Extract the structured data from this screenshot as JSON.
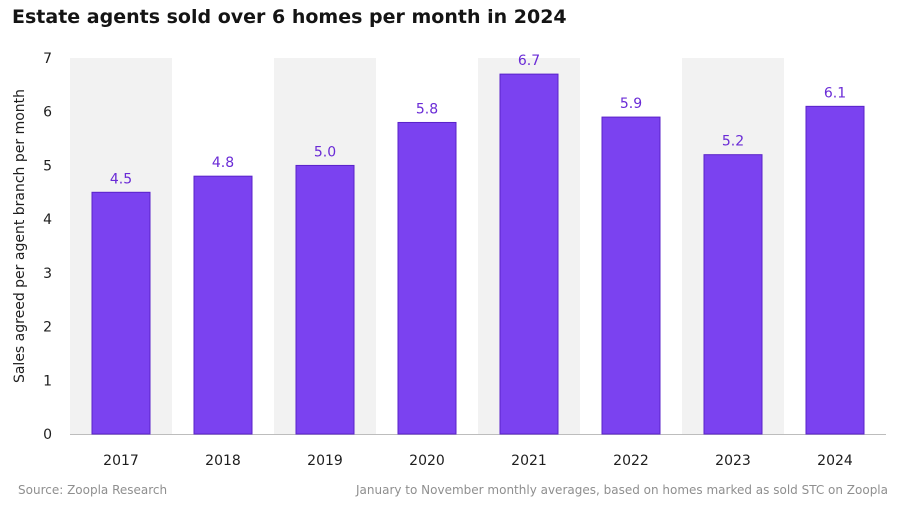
{
  "title": "Estate agents sold over 6 homes per month in 2024",
  "footer": {
    "source": "Source: Zoopla Research",
    "note": "January to November monthly averages, based on homes marked as sold STC on Zoopla"
  },
  "colors": {
    "bar": "#7b42f0",
    "bar_edge": "#5a22c9",
    "data_label": "#6a2bd6",
    "band": "#f2f2f2"
  },
  "chart_data": {
    "type": "bar",
    "categories": [
      "2017",
      "2018",
      "2019",
      "2020",
      "2021",
      "2022",
      "2023",
      "2024"
    ],
    "values": [
      4.5,
      4.8,
      5.0,
      5.8,
      6.7,
      5.9,
      5.2,
      6.1
    ],
    "data_labels": [
      "4.5",
      "4.8",
      "5.0",
      "5.8",
      "6.7",
      "5.9",
      "5.2",
      "6.1"
    ],
    "title": "Estate agents sold over 6 homes per month in 2024",
    "xlabel": "",
    "ylabel": "Sales agreed per agent branch per month",
    "ylim": [
      0,
      7
    ],
    "yticks": [
      0,
      1,
      2,
      3,
      4,
      5,
      6,
      7
    ],
    "grid": false,
    "legend": "none"
  }
}
